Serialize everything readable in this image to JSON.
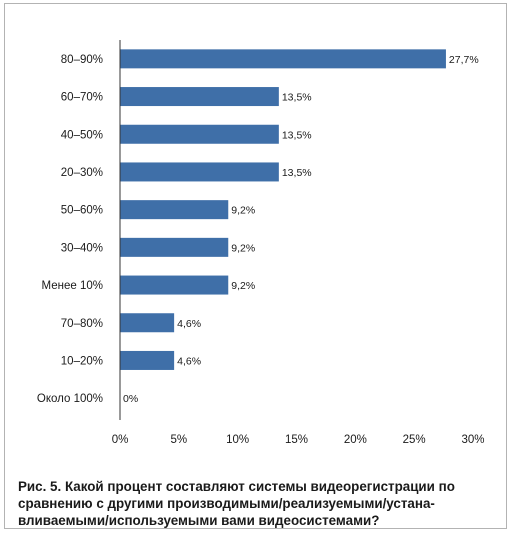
{
  "caption": "Рис. 5. Какой процент составляют системы видеорегистрации по сравнению с другими производимыми/реализуемыми/устана-вливаемыми/используемыми вами видеосистемами?",
  "colors": {
    "bar": "#3f6fa8",
    "axis": "#333333",
    "text": "#1a1a1a"
  },
  "chart_data": {
    "type": "bar",
    "orientation": "horizontal",
    "categories": [
      "80–90%",
      "60–70%",
      "40–50%",
      "20–30%",
      "50–60%",
      "30–40%",
      "Менее 10%",
      "70–80%",
      "10–20%",
      "Около 100%"
    ],
    "values": [
      27.7,
      13.5,
      13.5,
      13.5,
      9.2,
      9.2,
      9.2,
      4.6,
      4.6,
      0
    ],
    "value_labels": [
      "27,7%",
      "13,5%",
      "13,5%",
      "13,5%",
      "9,2%",
      "9,2%",
      "9,2%",
      "4,6%",
      "4,6%",
      "0%"
    ],
    "x_ticks": [
      0,
      5,
      10,
      15,
      20,
      25,
      30
    ],
    "x_tick_labels": [
      "0%",
      "5%",
      "10%",
      "15%",
      "20%",
      "25%",
      "30%"
    ],
    "xlim": [
      0,
      30
    ],
    "title": "",
    "xlabel": "",
    "ylabel": "",
    "grid": false,
    "legend": "none"
  }
}
